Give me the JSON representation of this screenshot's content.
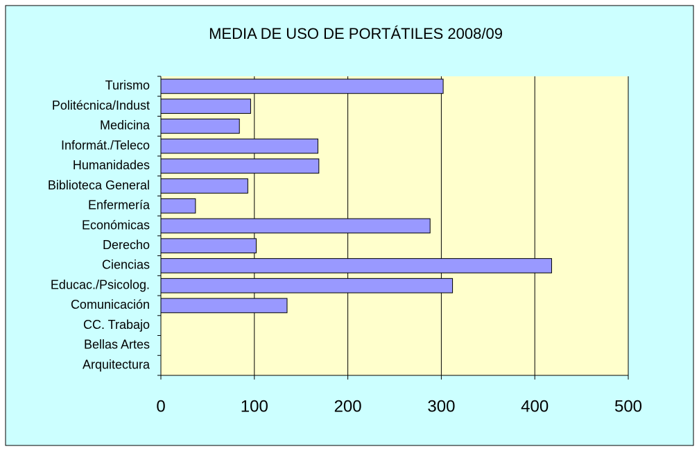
{
  "chart_data": {
    "type": "bar",
    "orientation": "horizontal",
    "title": "MEDIA DE USO DE PORTÁTILES 2008/09",
    "categories": [
      "Turismo",
      "Politécnica/Indust",
      "Medicina",
      "Informát./Teleco",
      "Humanidades",
      "Biblioteca General",
      "Enfermería",
      "Económicas",
      "Derecho",
      "Ciencias",
      "Educac./Psicolog.",
      "Comunicación",
      "CC. Trabajo",
      "Bellas Artes",
      "Arquitectura"
    ],
    "values": [
      302,
      96,
      84,
      168,
      169,
      93,
      37,
      288,
      102,
      418,
      312,
      135,
      0,
      0,
      0
    ],
    "color": "#9999ff",
    "xlim": [
      0,
      500
    ],
    "xticks": [
      0,
      100,
      200,
      300,
      400,
      500
    ],
    "grid": true
  }
}
